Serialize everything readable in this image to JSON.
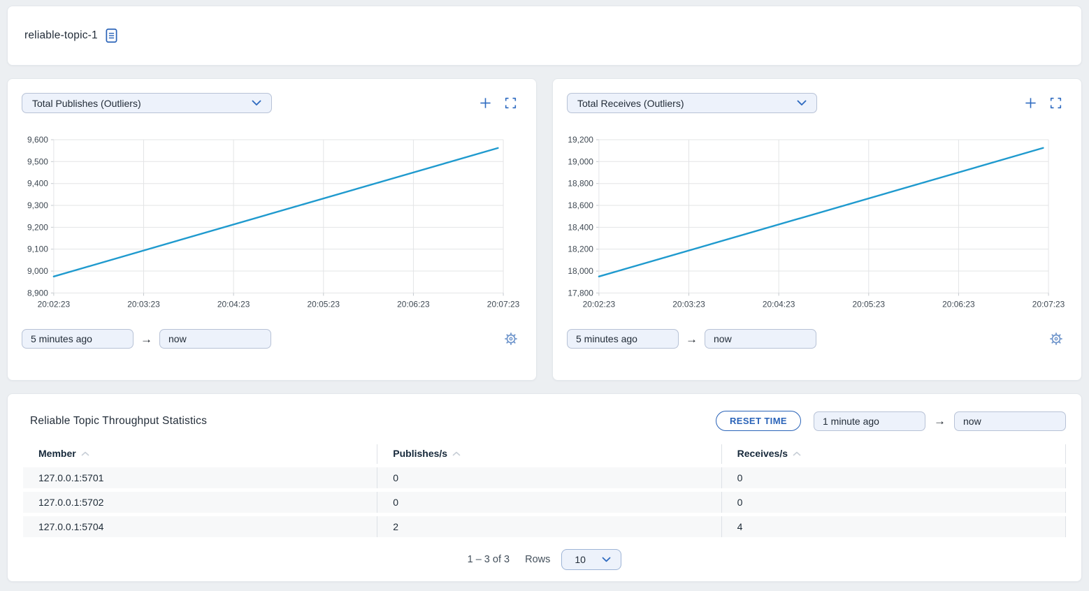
{
  "header": {
    "title": "reliable-topic-1"
  },
  "charts": [
    {
      "metric_selector": "Total Publishes (Outliers)",
      "time_from": "5 minutes ago",
      "time_to": "now"
    },
    {
      "metric_selector": "Total Receives (Outliers)",
      "time_from": "5 minutes ago",
      "time_to": "now"
    }
  ],
  "chart_data": [
    {
      "type": "line",
      "title": "Total Publishes (Outliers)",
      "x_ticks": [
        "20:02:23",
        "20:03:23",
        "20:04:23",
        "20:05:23",
        "20:06:23",
        "20:07:23"
      ],
      "ylim": [
        8900,
        9600
      ],
      "y_ticks": [
        8900,
        9000,
        9100,
        9200,
        9300,
        9400,
        9500,
        9600
      ],
      "y_tick_labels": [
        "8,900",
        "9,000",
        "9,100",
        "9,200",
        "9,300",
        "9,400",
        "9,500",
        "9,600"
      ],
      "series": [
        {
          "name": "Total Publishes",
          "points": [
            {
              "xf": 0.0,
              "y": 8975
            },
            {
              "xf": 0.988,
              "y": 9562
            }
          ]
        }
      ],
      "line_color": "#1f9ace",
      "grid": true,
      "legend": "none"
    },
    {
      "type": "line",
      "title": "Total Receives (Outliers)",
      "x_ticks": [
        "20:02:23",
        "20:03:23",
        "20:04:23",
        "20:05:23",
        "20:06:23",
        "20:07:23"
      ],
      "ylim": [
        17800,
        19200
      ],
      "y_ticks": [
        17800,
        18000,
        18200,
        18400,
        18600,
        18800,
        19000,
        19200
      ],
      "y_tick_labels": [
        "17,800",
        "18,000",
        "18,200",
        "18,400",
        "18,600",
        "18,800",
        "19,000",
        "19,200"
      ],
      "series": [
        {
          "name": "Total Receives",
          "points": [
            {
              "xf": 0.0,
              "y": 17950
            },
            {
              "xf": 0.988,
              "y": 19125
            }
          ]
        }
      ],
      "line_color": "#1f9ace",
      "grid": true,
      "legend": "none"
    }
  ],
  "table_card": {
    "title": "Reliable Topic Throughput Statistics",
    "reset_time_label": "RESET TIME",
    "time_from": "1 minute ago",
    "time_to": "now",
    "columns": [
      "Member",
      "Publishes/s",
      "Receives/s"
    ],
    "rows": [
      [
        "127.0.0.1:5701",
        "0",
        "0"
      ],
      [
        "127.0.0.1:5702",
        "0",
        "0"
      ],
      [
        "127.0.0.1:5704",
        "2",
        "4"
      ]
    ],
    "pagination": {
      "range": "1 – 3 of 3",
      "rows_label": "Rows",
      "page_size": "10"
    }
  },
  "colors": {
    "accent": "#2a63b8",
    "chart_line": "#1f9ace",
    "input_bg": "#edf2fb"
  }
}
